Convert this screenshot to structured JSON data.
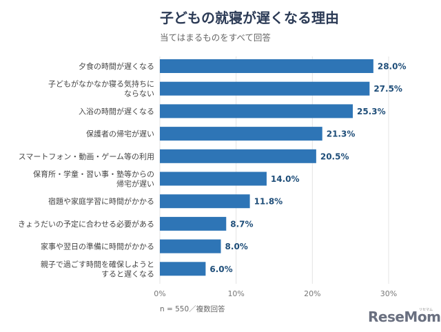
{
  "chart_data": {
    "type": "bar",
    "orientation": "horizontal",
    "title": "子どもの就寝が遅くなる理由",
    "subtitle": "当てはまるものをすべて回答",
    "categories": [
      [
        "夕食の時間が遅くなる"
      ],
      [
        "子どもがなかなか寝る気持ちに",
        "ならない"
      ],
      [
        "入浴の時間が遅くなる"
      ],
      [
        "保護者の帰宅が遅い"
      ],
      [
        "スマートフォン・動画・ゲーム等の利用"
      ],
      [
        "保育所・学童・習い事・塾等からの",
        "帰宅が遅い"
      ],
      [
        "宿題や家庭学習に時間がかかる"
      ],
      [
        "きょうだいの予定に合わせる必要がある"
      ],
      [
        "家事や翌日の準備に時間がかかる"
      ],
      [
        "親子で過ごす時間を確保しようと",
        "すると遅くなる"
      ]
    ],
    "values": [
      28.0,
      27.5,
      25.3,
      21.3,
      20.5,
      14.0,
      11.8,
      8.7,
      8.0,
      6.0
    ],
    "value_labels": [
      "28.0%",
      "27.5%",
      "25.3%",
      "21.3%",
      "20.5%",
      "14.0%",
      "11.8%",
      "8.7%",
      "8.0%",
      "6.0%"
    ],
    "xlim": [
      0,
      30
    ],
    "xticks": [
      0,
      10,
      20,
      30
    ],
    "xtick_labels": [
      "0%",
      "10%",
      "20%",
      "30%"
    ],
    "grid": "vertical",
    "bar_color": "#2e75b6",
    "label_color": "#1f4e79"
  },
  "note": "n = 550／複数回答",
  "logo": {
    "text": "ReseMom",
    "ruby": "リセマム"
  }
}
